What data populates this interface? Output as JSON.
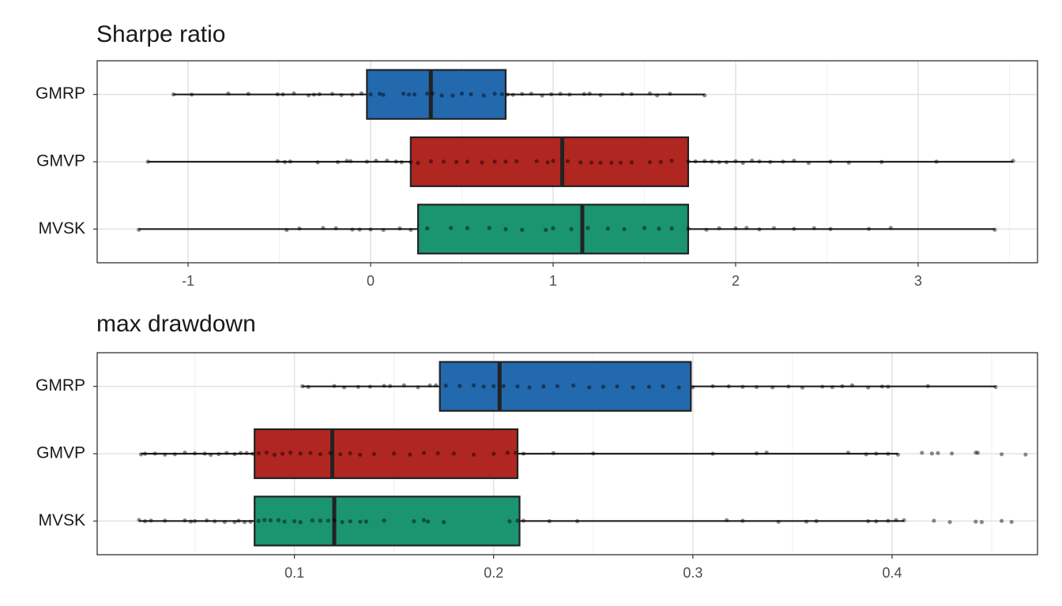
{
  "chart_data": [
    {
      "type": "boxplot",
      "title": "Sharpe ratio",
      "xlim": [
        -1.498,
        3.654
      ],
      "xticks": [
        -1,
        0,
        1,
        2,
        3
      ],
      "x_minor_ticks": [
        -0.5,
        0.5,
        1.5,
        2.5,
        3.5
      ],
      "grid": true,
      "boxes": [
        {
          "name": "GMRP",
          "color": "#2369ae",
          "min": -1.08,
          "q1": -0.02,
          "median": 0.33,
          "q3": 0.74,
          "max": 1.83,
          "points": [
            -1.08,
            -0.98,
            -0.78,
            -0.67,
            -0.51,
            -0.48,
            -0.42,
            -0.34,
            -0.31,
            -0.28,
            -0.21,
            -0.16,
            -0.1,
            -0.05,
            0,
            0.05,
            0.07,
            0.18,
            0.21,
            0.24,
            0.31,
            0.34,
            0.39,
            0.45,
            0.5,
            0.55,
            0.62,
            0.68,
            0.72,
            0.75,
            0.78,
            0.83,
            0.88,
            0.94,
            0.99,
            1.04,
            1.09,
            1.17,
            1.2,
            1.26,
            1.38,
            1.43,
            1.53,
            1.57,
            1.64,
            1.83
          ]
        },
        {
          "name": "GMVP",
          "color": "#b02621",
          "min": -1.22,
          "q1": 0.22,
          "median": 1.05,
          "q3": 1.74,
          "max": 3.52,
          "points": [
            -1.22,
            -0.51,
            -0.47,
            -0.44,
            -0.29,
            -0.18,
            -0.13,
            -0.11,
            -0.02,
            0.03,
            0.09,
            0.14,
            0.17,
            0.22,
            0.26,
            0.33,
            0.4,
            0.47,
            0.53,
            0.61,
            0.68,
            0.74,
            0.8,
            0.91,
            0.97,
            1,
            1.08,
            1.15,
            1.21,
            1.26,
            1.32,
            1.37,
            1.43,
            1.53,
            1.59,
            1.65,
            1.74,
            1.78,
            1.83,
            1.87,
            1.91,
            1.95,
            2,
            2.04,
            2.09,
            2.13,
            2.19,
            2.26,
            2.32,
            2.4,
            2.52,
            2.62,
            2.8,
            3.1,
            3.52
          ]
        },
        {
          "name": "MVSK",
          "color": "#1b9470",
          "min": -1.27,
          "q1": 0.26,
          "median": 1.16,
          "q3": 1.74,
          "max": 3.42,
          "points": [
            -1.27,
            -0.46,
            -0.39,
            -0.26,
            -0.19,
            -0.1,
            -0.06,
            0,
            0.07,
            0.16,
            0.22,
            0.31,
            0.44,
            0.53,
            0.65,
            0.74,
            0.83,
            0.96,
            1,
            1.1,
            1.19,
            1.3,
            1.39,
            1.5,
            1.58,
            1.65,
            1.74,
            1.84,
            1.91,
            2,
            2.06,
            2.13,
            2.21,
            2.32,
            2.43,
            2.52,
            2.73,
            2.85,
            3.42
          ]
        }
      ]
    },
    {
      "type": "boxplot",
      "title": "max drawdown",
      "xlim": [
        0.001,
        0.473
      ],
      "xticks": [
        0.1,
        0.2,
        0.3,
        0.4
      ],
      "x_minor_ticks": [
        0.05,
        0.15,
        0.25,
        0.35,
        0.45
      ],
      "grid": true,
      "boxes": [
        {
          "name": "GMRP",
          "color": "#2369ae",
          "min": 0.104,
          "q1": 0.173,
          "median": 0.203,
          "q3": 0.299,
          "max": 0.452,
          "points": [
            0.104,
            0.107,
            0.12,
            0.125,
            0.132,
            0.138,
            0.145,
            0.148,
            0.155,
            0.162,
            0.168,
            0.171,
            0.176,
            0.183,
            0.19,
            0.195,
            0.2,
            0.205,
            0.212,
            0.218,
            0.225,
            0.232,
            0.24,
            0.248,
            0.255,
            0.262,
            0.27,
            0.278,
            0.285,
            0.293,
            0.3,
            0.31,
            0.318,
            0.325,
            0.332,
            0.34,
            0.348,
            0.355,
            0.365,
            0.37,
            0.375,
            0.38,
            0.388,
            0.395,
            0.398,
            0.418,
            0.452
          ]
        },
        {
          "name": "GMVP",
          "color": "#b02621",
          "min": 0.023,
          "q1": 0.08,
          "median": 0.119,
          "q3": 0.212,
          "max": 0.403,
          "points": [
            0.023,
            0.025,
            0.03,
            0.035,
            0.04,
            0.045,
            0.05,
            0.055,
            0.058,
            0.062,
            0.066,
            0.07,
            0.073,
            0.076,
            0.079,
            0.082,
            0.086,
            0.09,
            0.094,
            0.098,
            0.103,
            0.108,
            0.113,
            0.118,
            0.123,
            0.128,
            0.133,
            0.14,
            0.15,
            0.158,
            0.165,
            0.172,
            0.18,
            0.19,
            0.2,
            0.207,
            0.211,
            0.215,
            0.23,
            0.25,
            0.31,
            0.332,
            0.337,
            0.378,
            0.387,
            0.392,
            0.398,
            0.403,
            0.415,
            0.42,
            0.423,
            0.43,
            0.442,
            0.443,
            0.455,
            0.467
          ]
        },
        {
          "name": "MVSK",
          "color": "#1b9470",
          "min": 0.022,
          "q1": 0.08,
          "median": 0.12,
          "q3": 0.213,
          "max": 0.406,
          "points": [
            0.022,
            0.025,
            0.028,
            0.035,
            0.045,
            0.048,
            0.05,
            0.056,
            0.06,
            0.065,
            0.07,
            0.072,
            0.075,
            0.078,
            0.082,
            0.085,
            0.088,
            0.092,
            0.095,
            0.1,
            0.103,
            0.109,
            0.113,
            0.117,
            0.12,
            0.124,
            0.128,
            0.133,
            0.136,
            0.145,
            0.16,
            0.165,
            0.167,
            0.175,
            0.208,
            0.212,
            0.215,
            0.228,
            0.242,
            0.317,
            0.325,
            0.343,
            0.357,
            0.362,
            0.388,
            0.392,
            0.398,
            0.402,
            0.406,
            0.421,
            0.429,
            0.442,
            0.445,
            0.455,
            0.46
          ]
        }
      ]
    }
  ]
}
